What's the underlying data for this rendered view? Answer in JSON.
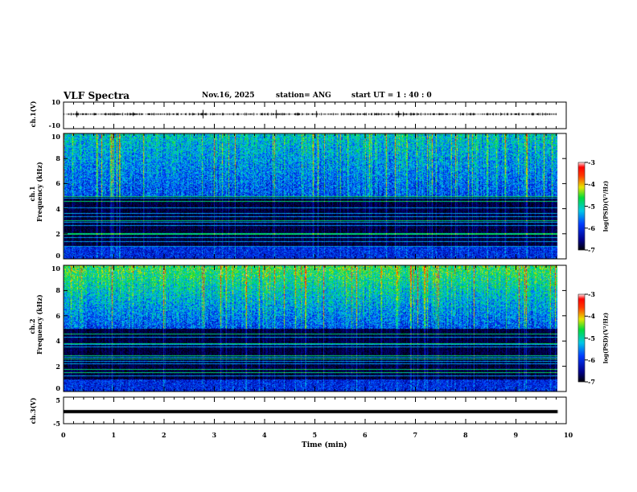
{
  "header": {
    "title": "VLF Spectra",
    "date": "Nov.16, 2025",
    "station": "station= ANG",
    "start": "start  UT =   1 : 40 : 0"
  },
  "chart_data": {
    "type": "heatmap",
    "xlabel": "Time (min)",
    "xlim": [
      0,
      10
    ],
    "x_ticks": [
      "0",
      "1",
      "2",
      "3",
      "4",
      "5",
      "6",
      "7",
      "8",
      "9",
      "10"
    ],
    "data_end_min": 9.83,
    "panels": [
      {
        "name": "ch1-waveform",
        "ylabel": "ch.1(V)",
        "ylim": [
          -10,
          10
        ],
        "y_ticks": [
          "10",
          "-10"
        ],
        "type": "line",
        "baseline": 0
      },
      {
        "name": "ch1-spectrogram",
        "ylabel": "ch.1\nFrequency (kHz)",
        "ylabel_lines": [
          "ch.1",
          "Frequency (kHz)"
        ],
        "ylim": [
          0,
          10
        ],
        "y_ticks": [
          "0",
          "2",
          "4",
          "6",
          "8",
          "10"
        ],
        "type": "heatmap"
      },
      {
        "name": "ch2-spectrogram",
        "ylabel_lines": [
          "ch.2",
          "Frequency (kHz)"
        ],
        "ylim": [
          0,
          10
        ],
        "y_ticks": [
          "0",
          "2",
          "4",
          "6",
          "8",
          "10"
        ],
        "type": "heatmap"
      },
      {
        "name": "ch3-waveform",
        "ylabel": "ch.3(V)",
        "ylim": [
          -5,
          5
        ],
        "y_ticks": [
          "5",
          "-5"
        ],
        "type": "line",
        "baseline": -1.5
      }
    ],
    "colorbar": {
      "label": "log(PSD)(V²/Hz)",
      "range": [
        -7,
        -3
      ],
      "ticks": [
        "-3",
        "-4",
        "-5",
        "-6",
        "-7"
      ]
    }
  }
}
